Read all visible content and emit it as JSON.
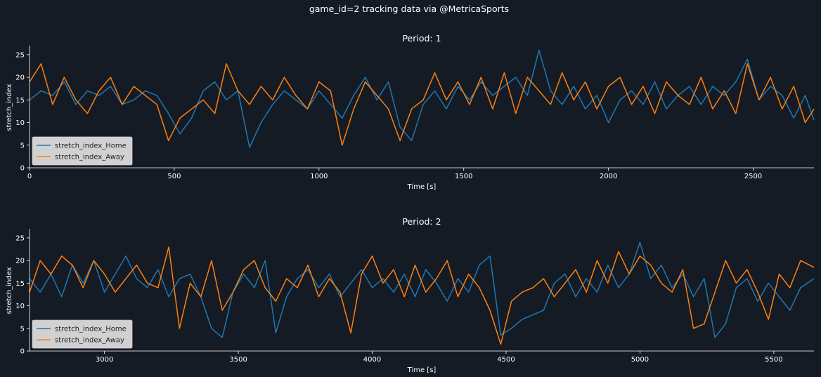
{
  "figure": {
    "suptitle": "game_id=2 tracking data via @MetricaSports",
    "background": "#151b24",
    "axis_color": "#ffffff"
  },
  "chart_data": [
    {
      "type": "line",
      "title": "Period: 1",
      "xlabel": "Time [s]",
      "ylabel": "stretch_index",
      "xlim": [
        0,
        2710
      ],
      "ylim": [
        0,
        27
      ],
      "xticks": [
        0,
        500,
        1000,
        1500,
        2000,
        2500
      ],
      "yticks": [
        0,
        5,
        10,
        15,
        20,
        25
      ],
      "legend_position": "lower-left",
      "series": [
        {
          "name": "stretch_index_Home",
          "color": "#1f77b4",
          "x": [
            0,
            40,
            80,
            120,
            160,
            200,
            240,
            280,
            320,
            360,
            400,
            440,
            480,
            520,
            560,
            600,
            640,
            680,
            720,
            760,
            800,
            840,
            880,
            920,
            960,
            1000,
            1040,
            1080,
            1120,
            1160,
            1200,
            1240,
            1280,
            1320,
            1360,
            1400,
            1440,
            1480,
            1520,
            1560,
            1600,
            1640,
            1680,
            1720,
            1760,
            1800,
            1840,
            1880,
            1920,
            1960,
            2000,
            2040,
            2080,
            2120,
            2160,
            2200,
            2240,
            2280,
            2320,
            2360,
            2400,
            2440,
            2480,
            2520,
            2560,
            2600,
            2640,
            2680,
            2710
          ],
          "values": [
            15,
            17,
            16,
            19,
            14,
            17,
            16,
            18,
            14,
            15,
            17,
            16,
            12,
            7.5,
            11,
            17,
            19,
            15,
            17,
            4.5,
            10,
            14,
            17,
            15,
            13,
            17,
            14,
            11,
            16,
            20,
            15,
            19,
            9,
            6,
            14,
            17,
            13,
            18,
            15,
            19,
            16,
            18,
            20,
            16,
            26,
            17,
            14,
            18,
            13,
            16,
            10,
            15,
            17,
            14,
            19,
            13,
            16,
            18,
            14,
            18,
            16,
            19,
            24,
            15,
            18,
            16,
            11,
            16,
            10.5
          ]
        },
        {
          "name": "stretch_index_Away",
          "color": "#ff7f0e",
          "x": [
            0,
            40,
            80,
            120,
            160,
            200,
            240,
            280,
            320,
            360,
            400,
            440,
            480,
            520,
            560,
            600,
            640,
            680,
            720,
            760,
            800,
            840,
            880,
            920,
            960,
            1000,
            1040,
            1080,
            1120,
            1160,
            1200,
            1240,
            1280,
            1320,
            1360,
            1400,
            1440,
            1480,
            1520,
            1560,
            1600,
            1640,
            1680,
            1720,
            1760,
            1800,
            1840,
            1880,
            1920,
            1960,
            2000,
            2040,
            2080,
            2120,
            2160,
            2200,
            2240,
            2280,
            2320,
            2360,
            2400,
            2440,
            2480,
            2520,
            2560,
            2600,
            2640,
            2680,
            2710
          ],
          "values": [
            19,
            23,
            14,
            20,
            15,
            12,
            17,
            20,
            14,
            18,
            16,
            14,
            6,
            11,
            13,
            15,
            12,
            23,
            17,
            14,
            18,
            15,
            20,
            16,
            13,
            19,
            17,
            5,
            13,
            19,
            16,
            13,
            6,
            13,
            15,
            21,
            15,
            19,
            14,
            20,
            13,
            21,
            12,
            20,
            17,
            14,
            21,
            15,
            19,
            13,
            18,
            20,
            14,
            18,
            12,
            19,
            16,
            14,
            20,
            13,
            17,
            12,
            23,
            15,
            20,
            13,
            18,
            10,
            13
          ]
        }
      ]
    },
    {
      "type": "line",
      "title": "Period: 2",
      "xlabel": "Time [s]",
      "ylabel": "stretch_index",
      "xlim": [
        2720,
        5650
      ],
      "ylim": [
        0,
        27
      ],
      "xticks": [
        3000,
        3500,
        4000,
        4500,
        5000,
        5500
      ],
      "yticks": [
        0,
        5,
        10,
        15,
        20,
        25
      ],
      "legend_position": "lower-left",
      "series": [
        {
          "name": "stretch_index_Home",
          "color": "#1f77b4",
          "x": [
            2720,
            2760,
            2800,
            2840,
            2880,
            2920,
            2960,
            3000,
            3040,
            3080,
            3120,
            3160,
            3200,
            3240,
            3280,
            3320,
            3360,
            3400,
            3440,
            3480,
            3520,
            3560,
            3600,
            3640,
            3680,
            3720,
            3760,
            3800,
            3840,
            3880,
            3920,
            3960,
            4000,
            4040,
            4080,
            4120,
            4160,
            4200,
            4240,
            4280,
            4320,
            4360,
            4400,
            4440,
            4480,
            4520,
            4560,
            4600,
            4640,
            4680,
            4720,
            4760,
            4800,
            4840,
            4880,
            4920,
            4960,
            5000,
            5040,
            5080,
            5120,
            5160,
            5200,
            5240,
            5280,
            5320,
            5360,
            5400,
            5440,
            5480,
            5520,
            5560,
            5600,
            5650
          ],
          "values": [
            16,
            13,
            17,
            12,
            19,
            15,
            20,
            13,
            17,
            21,
            16,
            14,
            18,
            12,
            16,
            17,
            12,
            5,
            3,
            13,
            17,
            14,
            20,
            4,
            12,
            16,
            18,
            14,
            17,
            12,
            15,
            18,
            14,
            16,
            13,
            17,
            12,
            18,
            15,
            11,
            16,
            13,
            19,
            21,
            3.5,
            5,
            7,
            8,
            9,
            15,
            17,
            12,
            16,
            13,
            19,
            14,
            17,
            24,
            16,
            19,
            14,
            17,
            12,
            16,
            3,
            6,
            14,
            16,
            11,
            15,
            12,
            9,
            14,
            16
          ]
        },
        {
          "name": "stretch_index_Away",
          "color": "#ff7f0e",
          "x": [
            2720,
            2760,
            2800,
            2840,
            2880,
            2920,
            2960,
            3000,
            3040,
            3080,
            3120,
            3160,
            3200,
            3240,
            3280,
            3320,
            3360,
            3400,
            3440,
            3480,
            3520,
            3560,
            3600,
            3640,
            3680,
            3720,
            3760,
            3800,
            3840,
            3880,
            3920,
            3960,
            4000,
            4040,
            4080,
            4120,
            4160,
            4200,
            4240,
            4280,
            4320,
            4360,
            4400,
            4440,
            4480,
            4520,
            4560,
            4600,
            4640,
            4680,
            4720,
            4760,
            4800,
            4840,
            4880,
            4920,
            4960,
            5000,
            5040,
            5080,
            5120,
            5160,
            5200,
            5240,
            5280,
            5320,
            5360,
            5400,
            5440,
            5480,
            5520,
            5560,
            5600,
            5650
          ],
          "values": [
            13,
            20,
            17,
            21,
            19,
            14,
            20,
            17,
            13,
            16,
            19,
            15,
            14,
            23,
            5,
            15,
            12,
            20,
            9,
            13,
            18,
            20,
            14,
            11,
            16,
            14,
            19,
            12,
            16,
            13,
            4,
            17,
            21,
            15,
            18,
            12,
            19,
            13,
            16,
            20,
            12,
            17,
            14,
            9,
            1.5,
            11,
            13,
            14,
            16,
            12,
            15,
            18,
            13,
            20,
            15,
            22,
            17,
            21,
            19,
            15,
            13,
            18,
            5,
            6,
            13,
            20,
            15,
            18,
            13,
            7,
            17,
            14,
            20,
            18.5
          ]
        }
      ]
    }
  ]
}
